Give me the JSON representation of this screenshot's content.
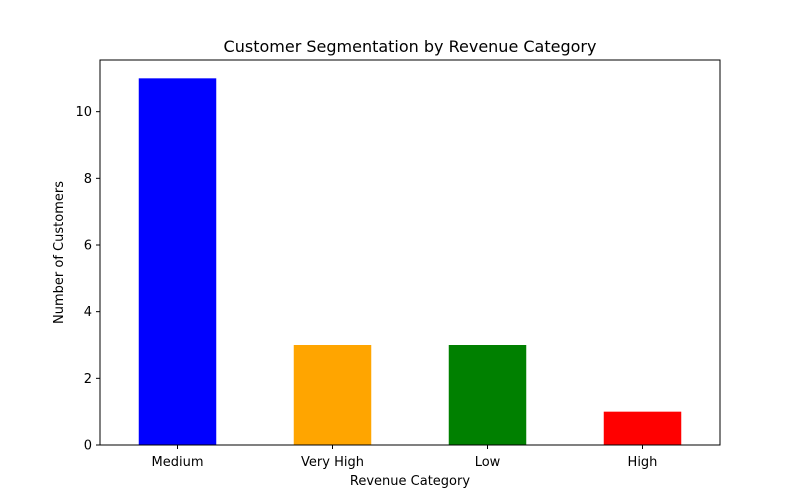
{
  "chart_data": {
    "type": "bar",
    "title": "Customer Segmentation by Revenue Category",
    "xlabel": "Revenue Category",
    "ylabel": "Number of Customers",
    "categories": [
      "Medium",
      "Very High",
      "Low",
      "High"
    ],
    "values": [
      11,
      3,
      3,
      1
    ],
    "colors": [
      "#0000ff",
      "#ffa500",
      "#008000",
      "#ff0000"
    ],
    "ylim": [
      0,
      11.55
    ],
    "yticks": [
      0,
      2,
      4,
      6,
      8,
      10
    ],
    "grid": false,
    "legend": "none"
  }
}
